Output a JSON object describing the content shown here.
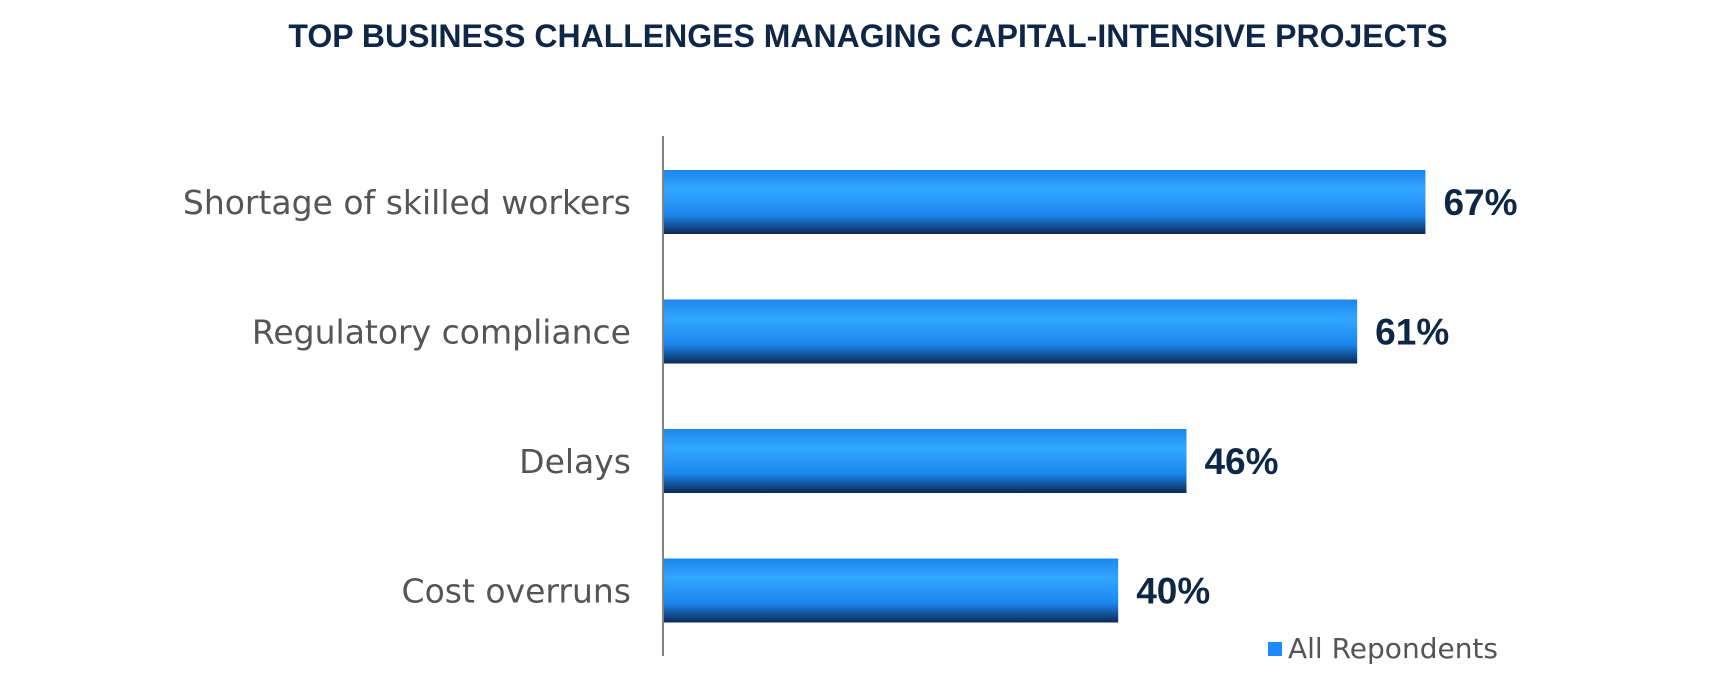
{
  "chart_data": {
    "type": "bar",
    "orientation": "horizontal",
    "title": "TOP BUSINESS CHALLENGES MANAGING CAPITAL-INTENSIVE PROJECTS",
    "categories": [
      "Shortage of skilled workers",
      "Regulatory compliance",
      "Delays",
      "Cost overruns"
    ],
    "series": [
      {
        "name": "All Repondents",
        "values": [
          67,
          61,
          46,
          40
        ],
        "data_labels": [
          "67%",
          "61%",
          "46%",
          "40%"
        ]
      }
    ],
    "xlim": [
      0,
      100
    ],
    "grid": false,
    "legend": "bottom-right",
    "colors": {
      "bar_top": "#33a6ff",
      "bar_mid": "#1c86ee",
      "bar_bottom": "#0b2a55",
      "title": "#0f2747",
      "value_label": "#0f2747",
      "category_label": "#555555",
      "axis": "#808080",
      "legend_swatch": "#1a8cff"
    }
  }
}
